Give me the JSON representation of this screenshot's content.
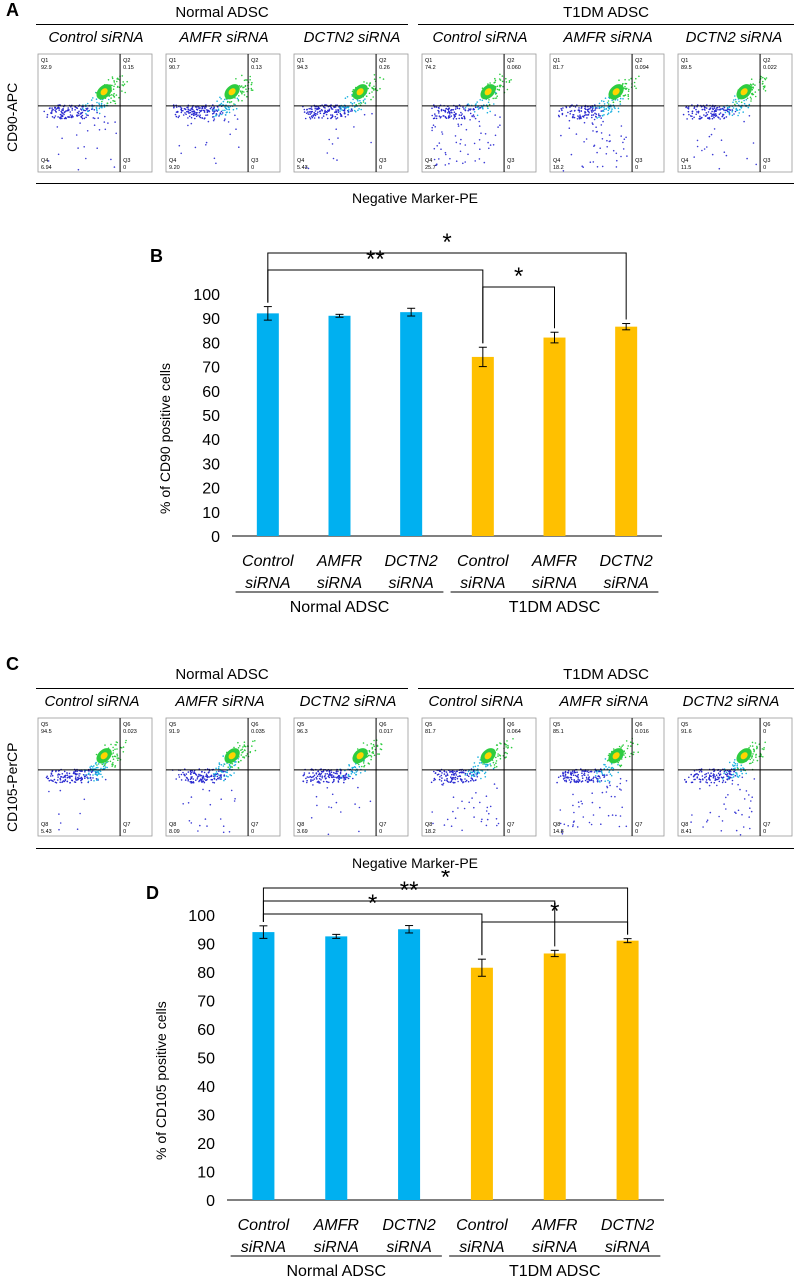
{
  "panel_A": {
    "letter": "A",
    "groups": [
      "Normal ADSC",
      "T1DM ADSC"
    ],
    "conditions": [
      "Control siRNA",
      "AMFR siRNA",
      "DCTN2 siRNA",
      "Control siRNA",
      "AMFR siRNA",
      "DCTN2 siRNA"
    ],
    "y_axis_label": "CD90-APC",
    "x_axis_label": "Negative Marker-PE",
    "quadrant_names": [
      "Q1",
      "Q2",
      "Q3",
      "Q4"
    ],
    "plots": [
      {
        "q1": "92.9",
        "q2": "0.15",
        "q3": "0",
        "q4": "6.94"
      },
      {
        "q1": "90.7",
        "q2": "0.13",
        "q3": "0",
        "q4": "9.20"
      },
      {
        "q1": "94.3",
        "q2": "0.26",
        "q3": "0",
        "q4": "5.43"
      },
      {
        "q1": "74.2",
        "q2": "0.060",
        "q3": "0",
        "q4": "25.7"
      },
      {
        "q1": "81.7",
        "q2": "0.094",
        "q3": "0",
        "q4": "18.2"
      },
      {
        "q1": "89.5",
        "q2": "0.022",
        "q3": "0",
        "q4": "11.5"
      }
    ]
  },
  "panel_C": {
    "letter": "C",
    "groups": [
      "Normal ADSC",
      "T1DM ADSC"
    ],
    "conditions": [
      "Control siRNA",
      "AMFR siRNA",
      "DCTN2 siRNA",
      "Control siRNA",
      "AMFR siRNA",
      "DCTN2 siRNA"
    ],
    "y_axis_label": "CD105-PerCP",
    "x_axis_label": "Negative Marker-PE",
    "quadrant_names": [
      "Q5",
      "Q6",
      "Q7",
      "Q8"
    ],
    "plots": [
      {
        "q1": "94.5",
        "q2": "0.023",
        "q3": "0",
        "q4": "5.43"
      },
      {
        "q1": "91.9",
        "q2": "0.035",
        "q3": "0",
        "q4": "8.09"
      },
      {
        "q1": "96.3",
        "q2": "0.017",
        "q3": "0",
        "q4": "3.69"
      },
      {
        "q1": "81.7",
        "q2": "0.064",
        "q3": "0",
        "q4": "18.2"
      },
      {
        "q1": "85.1",
        "q2": "0.016",
        "q3": "0",
        "q4": "14.8"
      },
      {
        "q1": "91.6",
        "q2": "0",
        "q3": "0",
        "q4": "8.41"
      }
    ]
  },
  "chart_data": [
    {
      "panel": "B",
      "type": "bar",
      "title": "",
      "ylabel": "% of CD90 positive cells",
      "ylim": [
        0,
        100
      ],
      "yticks": [
        "0",
        "10",
        "20",
        "30",
        "40",
        "50",
        "60",
        "70",
        "80",
        "90",
        "100"
      ],
      "categories": [
        [
          "Control",
          "siRNA"
        ],
        [
          "AMFR",
          "siRNA"
        ],
        [
          "DCTN2",
          "siRNA"
        ],
        [
          "Control",
          "siRNA"
        ],
        [
          "AMFR",
          "siRNA"
        ],
        [
          "DCTN2",
          "siRNA"
        ]
      ],
      "groups": [
        "Normal ADSC",
        "T1DM ADSC"
      ],
      "values": [
        92,
        91,
        92.5,
        74,
        82,
        86.5
      ],
      "errors": [
        2.8,
        0.6,
        1.6,
        4,
        2.2,
        1.3
      ],
      "colors": [
        "#00b0f0",
        "#00b0f0",
        "#00b0f0",
        "#ffc000",
        "#ffc000",
        "#ffc000"
      ],
      "significance": [
        {
          "from": 0,
          "to": 5,
          "label": "*"
        },
        {
          "from": 0,
          "to": 3,
          "label": "**"
        },
        {
          "from": 3,
          "to": 4,
          "label": "*"
        }
      ]
    },
    {
      "panel": "D",
      "type": "bar",
      "title": "",
      "ylabel": "% of CD105 positive cells",
      "ylim": [
        0,
        100
      ],
      "yticks": [
        "0",
        "10",
        "20",
        "30",
        "40",
        "50",
        "60",
        "70",
        "80",
        "90",
        "100"
      ],
      "categories": [
        [
          "Control",
          "siRNA"
        ],
        [
          "AMFR",
          "siRNA"
        ],
        [
          "DCTN2",
          "siRNA"
        ],
        [
          "Control",
          "siRNA"
        ],
        [
          "AMFR",
          "siRNA"
        ],
        [
          "DCTN2",
          "siRNA"
        ]
      ],
      "groups": [
        "Normal ADSC",
        "T1DM ADSC"
      ],
      "values": [
        94,
        92.5,
        95,
        81.5,
        86.5,
        91
      ],
      "errors": [
        2.2,
        0.7,
        1.3,
        3,
        1.1,
        0.7
      ],
      "colors": [
        "#00b0f0",
        "#00b0f0",
        "#00b0f0",
        "#ffc000",
        "#ffc000",
        "#ffc000"
      ],
      "significance": [
        {
          "from": 0,
          "to": 5,
          "label": "*"
        },
        {
          "from": 0,
          "to": 4,
          "label": "**"
        },
        {
          "from": 0,
          "to": 3,
          "label": "*"
        },
        {
          "from": 3,
          "to": 5,
          "label": "*"
        }
      ]
    }
  ],
  "labels": {
    "B": "B",
    "D": "D"
  }
}
